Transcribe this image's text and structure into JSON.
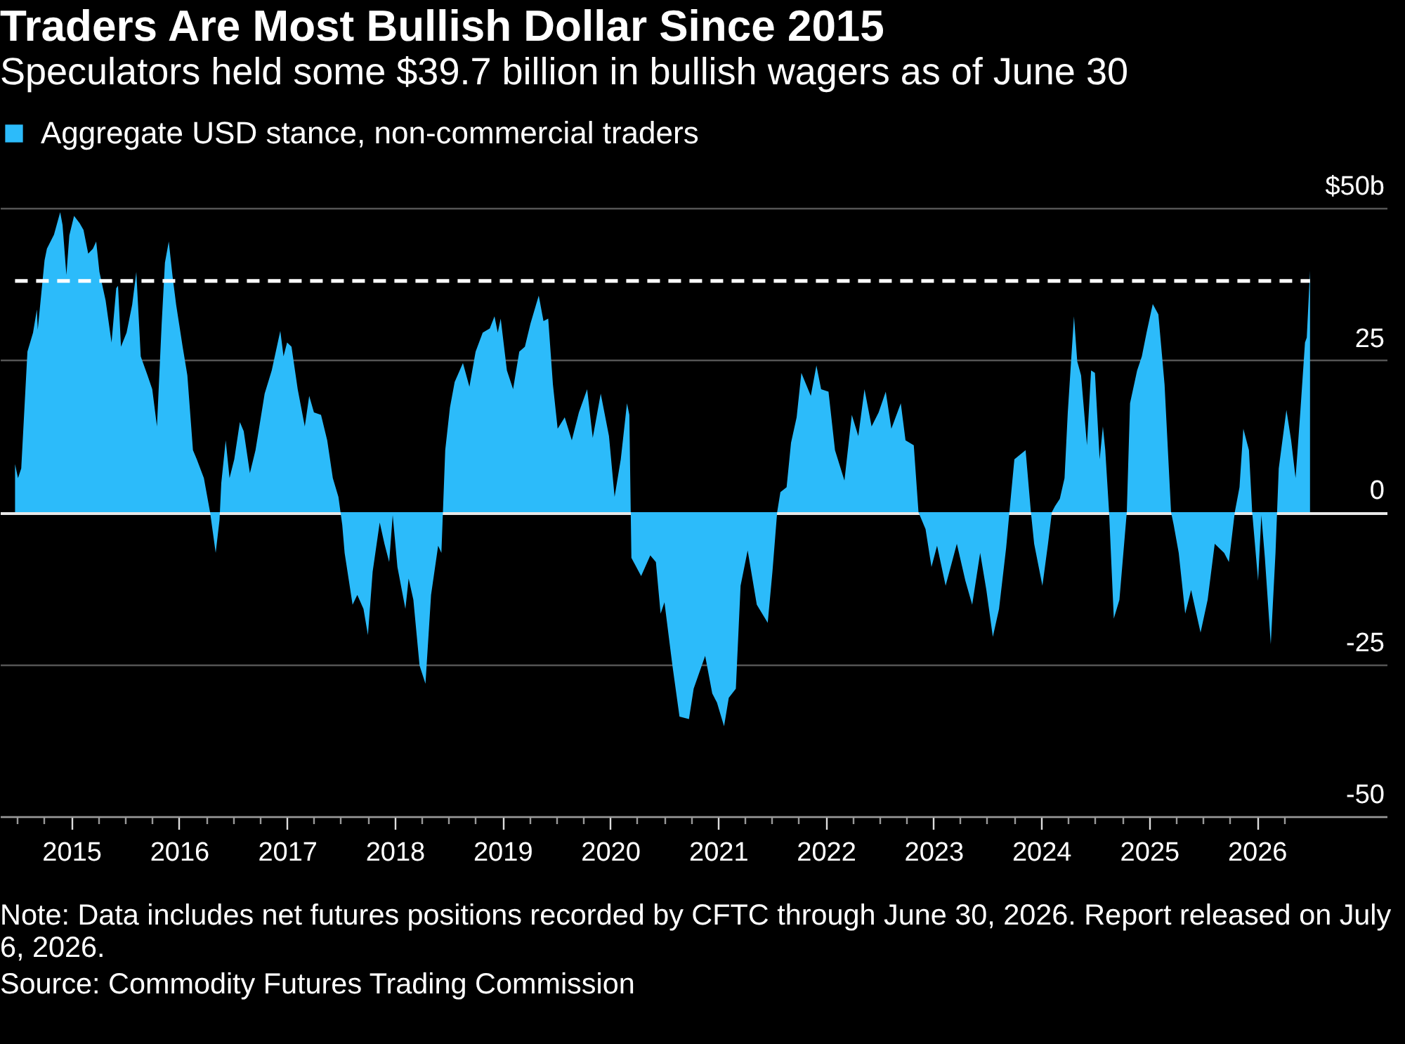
{
  "chart_data": {
    "type": "area",
    "title": "Traders Are Most Bullish Dollar Since 2015",
    "subtitle": "Speculators held some $39.7 billion in bullish wagers as of June 30",
    "annotations": [
      "Note: Data includes net futures positions recorded by CFTC through June 30, 2026. Report released on July 6, 2026.",
      "Source: Commodity Futures Trading Commission"
    ],
    "series": [
      {
        "name": "Aggregate USD stance, non-commercial traders",
        "color": "#2cbbfa",
        "x": [
          "2014-06-24",
          "2014-07-04",
          "2014-07-15",
          "2014-08-05",
          "2014-08-24",
          "2014-09-06",
          "2014-09-09",
          "2014-10-02",
          "2014-10-10",
          "2014-11-03",
          "2014-11-24",
          "2014-12-02",
          "2014-12-15",
          "2014-12-25",
          "2015-01-10",
          "2015-01-29",
          "2015-02-11",
          "2015-02-27",
          "2015-03-15",
          "2015-03-26",
          "2015-04-06",
          "2015-04-27",
          "2015-05-17",
          "2015-06-02",
          "2015-06-08",
          "2015-06-18",
          "2015-07-07",
          "2015-07-26",
          "2015-08-09",
          "2015-08-24",
          "2015-09-16",
          "2015-10-02",
          "2015-10-18",
          "2015-11-03",
          "2015-11-14",
          "2015-11-27",
          "2015-12-10",
          "2015-12-22",
          "2016-01-13",
          "2016-01-29",
          "2016-02-17",
          "2016-03-01",
          "2016-03-25",
          "2016-04-15",
          "2016-05-04",
          "2016-05-17",
          "2016-05-23",
          "2016-06-07",
          "2016-06-20",
          "2016-07-06",
          "2016-07-25",
          "2016-08-07",
          "2016-08-28",
          "2016-09-16",
          "2016-10-17",
          "2016-11-10",
          "2016-12-09",
          "2016-12-20",
          "2017-01-01",
          "2017-01-16",
          "2017-02-06",
          "2017-03-02",
          "2017-03-17",
          "2017-04-02",
          "2017-04-26",
          "2017-05-17",
          "2017-06-05",
          "2017-06-24",
          "2017-07-07",
          "2017-07-15",
          "2017-08-11",
          "2017-08-27",
          "2017-09-17",
          "2017-10-02",
          "2017-10-18",
          "2017-11-11",
          "2017-11-27",
          "2017-12-13",
          "2017-12-25",
          "2018-01-10",
          "2018-02-06",
          "2018-02-17",
          "2018-03-05",
          "2018-03-26",
          "2018-04-15",
          "2018-05-04",
          "2018-05-28",
          "2018-06-08",
          "2018-06-21",
          "2018-07-07",
          "2018-07-23",
          "2018-08-20",
          "2018-09-11",
          "2018-10-02",
          "2018-10-26",
          "2018-11-19",
          "2018-12-05",
          "2018-12-16",
          "2018-12-26",
          "2019-01-16",
          "2019-02-06",
          "2019-02-27",
          "2019-03-18",
          "2019-04-06",
          "2019-05-04",
          "2019-05-20",
          "2019-06-05",
          "2019-06-21",
          "2019-07-07",
          "2019-07-31",
          "2019-08-24",
          "2019-09-17",
          "2019-10-15",
          "2019-11-03",
          "2019-11-30",
          "2019-12-28",
          "2020-01-16",
          "2020-02-06",
          "2020-02-27",
          "2020-03-06",
          "2020-03-13",
          "2020-04-15",
          "2020-05-16",
          "2020-06-04",
          "2020-06-20",
          "2020-07-03",
          "2020-07-30",
          "2020-08-23",
          "2020-09-24",
          "2020-10-10",
          "2020-11-18",
          "2020-12-12",
          "2020-12-28",
          "2021-01-21",
          "2021-02-06",
          "2021-03-02",
          "2021-03-18",
          "2021-04-11",
          "2021-05-12",
          "2021-06-18",
          "2021-07-04",
          "2021-07-20",
          "2021-07-31",
          "2021-08-21",
          "2021-09-05",
          "2021-09-24",
          "2021-10-10",
          "2021-11-11",
          "2021-11-30",
          "2021-12-16",
          "2022-01-10",
          "2022-02-01",
          "2022-03-05",
          "2022-03-30",
          "2022-04-21",
          "2022-05-12",
          "2022-06-05",
          "2022-06-29",
          "2022-07-23",
          "2022-08-11",
          "2022-09-12",
          "2022-09-28",
          "2022-10-26",
          "2022-11-11",
          "2022-12-05",
          "2022-12-25",
          "2023-01-13",
          "2023-02-11",
          "2023-03-21",
          "2023-04-19",
          "2023-05-12",
          "2023-06-08",
          "2023-06-29",
          "2023-07-21",
          "2023-08-11",
          "2023-09-04",
          "2023-09-20",
          "2023-10-02",
          "2023-11-09",
          "2023-11-27",
          "2023-12-08",
          "2024-01-05",
          "2024-01-24",
          "2024-02-06",
          "2024-02-17",
          "2024-03-04",
          "2024-03-20",
          "2024-03-31",
          "2024-04-21",
          "2024-05-02",
          "2024-05-15",
          "2024-06-04",
          "2024-06-18",
          "2024-07-01",
          "2024-07-17",
          "2024-07-28",
          "2024-08-05",
          "2024-08-18",
          "2024-09-03",
          "2024-09-22",
          "2024-10-17",
          "2024-10-28",
          "2024-11-21",
          "2024-12-07",
          "2024-12-23",
          "2025-01-13",
          "2025-02-01",
          "2025-02-22",
          "2025-03-16",
          "2025-03-25",
          "2025-04-11",
          "2025-05-03",
          "2025-05-23",
          "2025-06-24",
          "2025-07-18",
          "2025-08-11",
          "2025-09-12",
          "2025-09-28",
          "2025-10-18",
          "2025-11-03",
          "2025-11-16",
          "2025-12-05",
          "2025-12-16",
          "2026-01-05",
          "2026-01-16",
          "2026-01-28",
          "2026-02-17",
          "2026-03-05",
          "2026-03-16",
          "2026-04-11",
          "2026-04-27",
          "2026-05-12",
          "2026-05-28",
          "2026-06-13",
          "2026-06-19",
          "2026-06-30"
        ],
        "values": [
          7.9,
          5.6,
          7.2,
          26.4,
          29.5,
          33.3,
          30,
          41.4,
          43.3,
          45.6,
          49.3,
          47.2,
          39,
          45.5,
          48.7,
          47.5,
          46.4,
          42.5,
          43.3,
          44.5,
          39.5,
          34.8,
          27.9,
          36.8,
          37.2,
          27.2,
          29.5,
          34.1,
          39.5,
          25.6,
          22.5,
          20.2,
          14.1,
          31,
          41,
          44.5,
          38.7,
          34.1,
          27.2,
          22.5,
          10.2,
          8.7,
          5.6,
          0,
          -6.7,
          -1.3,
          4.8,
          11.8,
          5.6,
          8.7,
          14.8,
          13.3,
          6.4,
          10.2,
          19.5,
          23.3,
          29.8,
          25.6,
          27.9,
          27.2,
          20.2,
          14.1,
          19.1,
          16.4,
          16,
          11.8,
          5.6,
          2.5,
          -2.1,
          -6.7,
          -15.2,
          -13.6,
          -15.9,
          -20.2,
          -9.8,
          -1.7,
          -5.2,
          -8.2,
          -0.5,
          -9,
          -15.9,
          -10.9,
          -14.4,
          -25.2,
          -28.2,
          -13.6,
          -5.5,
          -6.7,
          10.2,
          17.2,
          21.4,
          24.5,
          20.6,
          26.4,
          29.5,
          30.2,
          32.2,
          29.5,
          31.8,
          23.3,
          20.2,
          26.4,
          27.2,
          31,
          35.6,
          31.4,
          31.8,
          21,
          13.7,
          15.6,
          11.8,
          16.4,
          20.2,
          12.2,
          19.5,
          12.5,
          2.5,
          8.7,
          17.9,
          16,
          -7.5,
          -10.5,
          -7.1,
          -8.2,
          -16.7,
          -14.8,
          -25.2,
          -33.6,
          -34,
          -29,
          -23.6,
          -29.8,
          -31.3,
          -35.2,
          -30.5,
          -29,
          -12.1,
          -6.3,
          -15.2,
          -18.2,
          -9.8,
          0,
          3.3,
          4.1,
          11.4,
          15.6,
          22.9,
          19.1,
          24.1,
          20.2,
          19.8,
          10.2,
          5.2,
          16,
          12.5,
          20.2,
          14.1,
          16.4,
          19.8,
          13.7,
          17.9,
          11.8,
          11,
          0,
          -2.8,
          -9,
          -5.5,
          -12.1,
          -5.2,
          -11.3,
          -15.2,
          -6.7,
          -12.8,
          -20.5,
          -15.9,
          -5.9,
          2.5,
          8.7,
          10.2,
          0,
          -5.2,
          -12.1,
          -5.2,
          0,
          1,
          2.2,
          5.6,
          16.4,
          32.2,
          24.8,
          22.5,
          11,
          23.3,
          22.9,
          8.7,
          14.1,
          10.2,
          0,
          -17.5,
          -14.4,
          0,
          17.9,
          23.3,
          25.6,
          29.5,
          34.2,
          32.5,
          21,
          0,
          -2.1,
          -6.7,
          -16.7,
          -12.8,
          -19.8,
          -14.4,
          -5.2,
          -6.7,
          -8.2,
          0,
          4.1,
          13.7,
          10.2,
          0,
          -11.3,
          -0.5,
          -7.5,
          -21.7,
          -6.7,
          7.2,
          16.8,
          11.8,
          5.6,
          16.4,
          27.9,
          28.7,
          39.7
        ]
      }
    ],
    "xlim": [
      "2014-05-04",
      "2027-03-17"
    ],
    "ylim": [
      -50,
      50
    ],
    "xticks": [
      {
        "value": "2014-07",
        "label": null
      },
      {
        "value": "2014-10",
        "label": null
      },
      "2015",
      {
        "value": "2015-04",
        "label": null
      },
      {
        "value": "2015-07",
        "label": null
      },
      {
        "value": "2015-10",
        "label": null
      },
      "2016",
      {
        "value": "2016-04",
        "label": null
      },
      {
        "value": "2016-07",
        "label": null
      },
      {
        "value": "2016-10",
        "label": null
      },
      "2017",
      {
        "value": "2017-04",
        "label": null
      },
      {
        "value": "2017-07",
        "label": null
      },
      {
        "value": "2017-10",
        "label": null
      },
      "2018",
      {
        "value": "2018-04",
        "label": null
      },
      {
        "value": "2018-07",
        "label": null
      },
      {
        "value": "2018-10",
        "label": null
      },
      "2019",
      {
        "value": "2019-04",
        "label": null
      },
      {
        "value": "2019-07",
        "label": null
      },
      {
        "value": "2019-10",
        "label": null
      },
      "2020",
      {
        "value": "2020-04",
        "label": null
      },
      {
        "value": "2020-07",
        "label": null
      },
      {
        "value": "2020-10",
        "label": null
      },
      "2021",
      {
        "value": "2021-04",
        "label": null
      },
      {
        "value": "2021-07",
        "label": null
      },
      {
        "value": "2021-10",
        "label": null
      },
      "2022",
      {
        "value": "2022-04",
        "label": null
      },
      {
        "value": "2022-07",
        "label": null
      },
      {
        "value": "2022-10",
        "label": null
      },
      "2023",
      {
        "value": "2023-04",
        "label": null
      },
      {
        "value": "2023-07",
        "label": null
      },
      {
        "value": "2023-10",
        "label": null
      },
      "2024",
      {
        "value": "2024-04",
        "label": null
      },
      {
        "value": "2024-07",
        "label": null
      },
      {
        "value": "2024-10",
        "label": null
      },
      "2025",
      {
        "value": "2025-04",
        "label": null
      },
      {
        "value": "2025-07",
        "label": null
      },
      {
        "value": "2025-10",
        "label": null
      },
      "2026",
      {
        "value": "2026-04",
        "label": null
      }
    ],
    "yticks": [
      {
        "value": 50,
        "label": "$50b"
      },
      25,
      0,
      -25,
      -50
    ],
    "ref_lines": [
      {
        "axis": "y",
        "value": 38,
        "color": "#ffffff",
        "line_style": "dashed"
      }
    ],
    "grid": "y",
    "legend": "top left"
  }
}
